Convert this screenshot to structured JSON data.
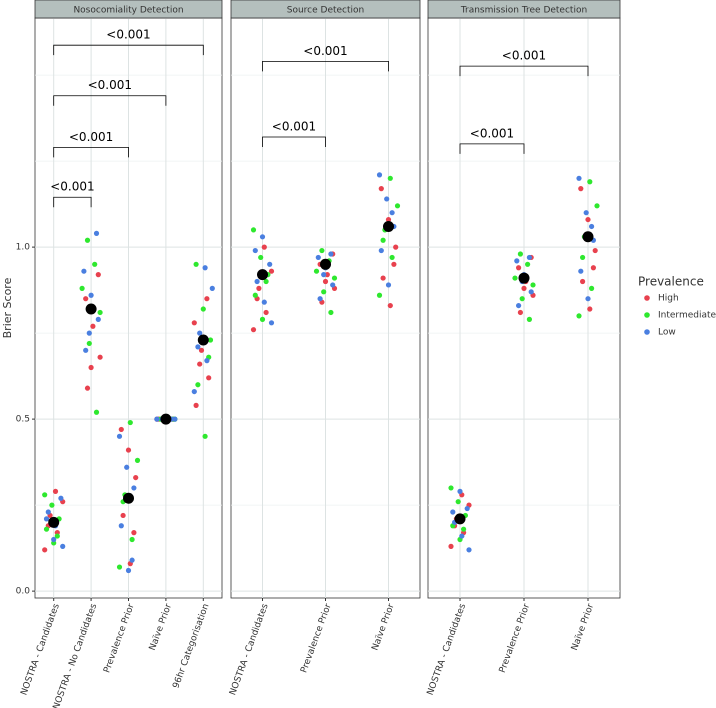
{
  "chart_data": {
    "type": "strip",
    "y_label": "Brier Score",
    "ylim": [
      -0.02,
      1.666
    ],
    "yticks": [
      {
        "value": 0,
        "label": "0.0"
      },
      0.5,
      {
        "value": 1,
        "label": "1.0"
      }
    ],
    "legend": {
      "title": "Prevalence",
      "position": "right",
      "entries": [
        {
          "name": "High",
          "color": "#e8414e"
        },
        {
          "name": "Intermediate",
          "color": "#2ee82e"
        },
        {
          "name": "Low",
          "color": "#4a7fe0"
        }
      ]
    },
    "facets": [
      {
        "title": "Nosocomiality Detection",
        "categories": [
          "NOSTRA - Candidates",
          "NOSTRA - No Candidates",
          "Prevalence Prior",
          "Naïve Prior",
          "96hr Categorisation"
        ],
        "series": [
          {
            "values": [
              [
                0.12,
                0.17,
                0.22,
                0.26,
                0.29,
                0.19
              ],
              [
                0.59,
                0.68,
                0.77,
                0.85,
                0.92,
                0.65
              ],
              [
                0.08,
                0.22,
                0.33,
                0.41,
                0.47,
                0.17
              ],
              [
                0.5,
                0.5,
                0.5,
                0.5,
                0.5,
                0.5
              ],
              [
                0.54,
                0.62,
                0.7,
                0.78,
                0.85,
                0.66
              ]
            ]
          },
          {
            "values": [
              [
                0.14,
                0.18,
                0.21,
                0.25,
                0.28,
                0.16
              ],
              [
                0.52,
                0.72,
                0.88,
                0.95,
                1.02,
                0.81
              ],
              [
                0.07,
                0.15,
                0.28,
                0.38,
                0.49,
                0.26
              ],
              [
                0.5,
                0.5,
                0.5,
                0.5,
                0.5,
                0.5
              ],
              [
                0.45,
                0.6,
                0.73,
                0.82,
                0.95,
                0.68
              ]
            ]
          },
          {
            "values": [
              [
                0.13,
                0.19,
                0.23,
                0.27,
                0.15,
                0.21
              ],
              [
                0.7,
                0.79,
                0.86,
                0.93,
                1.04,
                0.75
              ],
              [
                0.06,
                0.19,
                0.3,
                0.36,
                0.45,
                0.09
              ],
              [
                0.5,
                0.5,
                0.5,
                0.5,
                0.5,
                0.5
              ],
              [
                0.58,
                0.67,
                0.75,
                0.88,
                0.94,
                0.71
              ]
            ]
          }
        ],
        "means": [
          0.2,
          0.82,
          0.27,
          0.5,
          0.73
        ],
        "comparisons": [
          {
            "from": 0,
            "to": 1,
            "label": "<0.001",
            "y": 1.145
          },
          {
            "from": 0,
            "to": 2,
            "label": "<0.001",
            "y": 1.29
          },
          {
            "from": 0,
            "to": 3,
            "label": "<0.001",
            "y": 1.44
          },
          {
            "from": 0,
            "to": 4,
            "label": "<0.001",
            "y": 1.587
          }
        ]
      },
      {
        "title": "Source Detection",
        "categories": [
          "NOSTRA - Candidates",
          "Prevalence Prior",
          "Naïve Prior"
        ],
        "series": [
          {
            "values": [
              [
                0.76,
                0.81,
                0.88,
                0.93,
                1.0,
                0.85
              ],
              [
                0.84,
                0.88,
                0.92,
                0.95,
                0.98,
                0.9
              ],
              [
                0.83,
                0.91,
                1.0,
                1.08,
                1.17,
                0.95
              ]
            ]
          },
          {
            "values": [
              [
                0.79,
                0.86,
                0.92,
                0.97,
                1.05,
                0.9
              ],
              [
                0.81,
                0.87,
                0.93,
                0.96,
                0.99,
                0.91
              ],
              [
                0.86,
                0.97,
                1.05,
                1.12,
                1.2,
                1.02
              ]
            ]
          },
          {
            "values": [
              [
                0.78,
                0.84,
                0.9,
                0.95,
                1.03,
                0.99
              ],
              [
                0.85,
                0.89,
                0.94,
                0.97,
                0.98,
                0.92
              ],
              [
                0.89,
                0.99,
                1.06,
                1.14,
                1.21,
                1.1
              ]
            ]
          }
        ],
        "means": [
          0.92,
          0.95,
          1.06
        ],
        "comparisons": [
          {
            "from": 0,
            "to": 1,
            "label": "<0.001",
            "y": 1.32
          },
          {
            "from": 0,
            "to": 2,
            "label": "<0.001",
            "y": 1.54
          }
        ]
      },
      {
        "title": "Transmission Tree Detection",
        "categories": [
          "NOSTRA - Candidates",
          "Prevalence Prior",
          "Naïve Prior"
        ],
        "series": [
          {
            "values": [
              [
                0.13,
                0.17,
                0.21,
                0.25,
                0.28,
                0.19
              ],
              [
                0.81,
                0.86,
                0.9,
                0.94,
                0.97,
                0.88
              ],
              [
                0.82,
                0.9,
                0.99,
                1.08,
                1.17,
                0.94
              ]
            ]
          },
          {
            "values": [
              [
                0.15,
                0.19,
                0.22,
                0.26,
                0.3,
                0.18
              ],
              [
                0.79,
                0.85,
                0.91,
                0.95,
                0.98,
                0.89
              ],
              [
                0.8,
                0.88,
                1.03,
                1.12,
                1.19,
                0.97
              ]
            ]
          },
          {
            "values": [
              [
                0.12,
                0.16,
                0.2,
                0.24,
                0.29,
                0.23
              ],
              [
                0.83,
                0.87,
                0.92,
                0.96,
                0.97,
                0.9
              ],
              [
                0.85,
                0.93,
                1.02,
                1.1,
                1.2,
                1.06
              ]
            ]
          }
        ],
        "means": [
          0.21,
          0.91,
          1.03
        ],
        "comparisons": [
          {
            "from": 0,
            "to": 1,
            "label": "<0.001",
            "y": 1.3
          },
          {
            "from": 0,
            "to": 2,
            "label": "<0.001",
            "y": 1.526
          }
        ]
      }
    ]
  }
}
